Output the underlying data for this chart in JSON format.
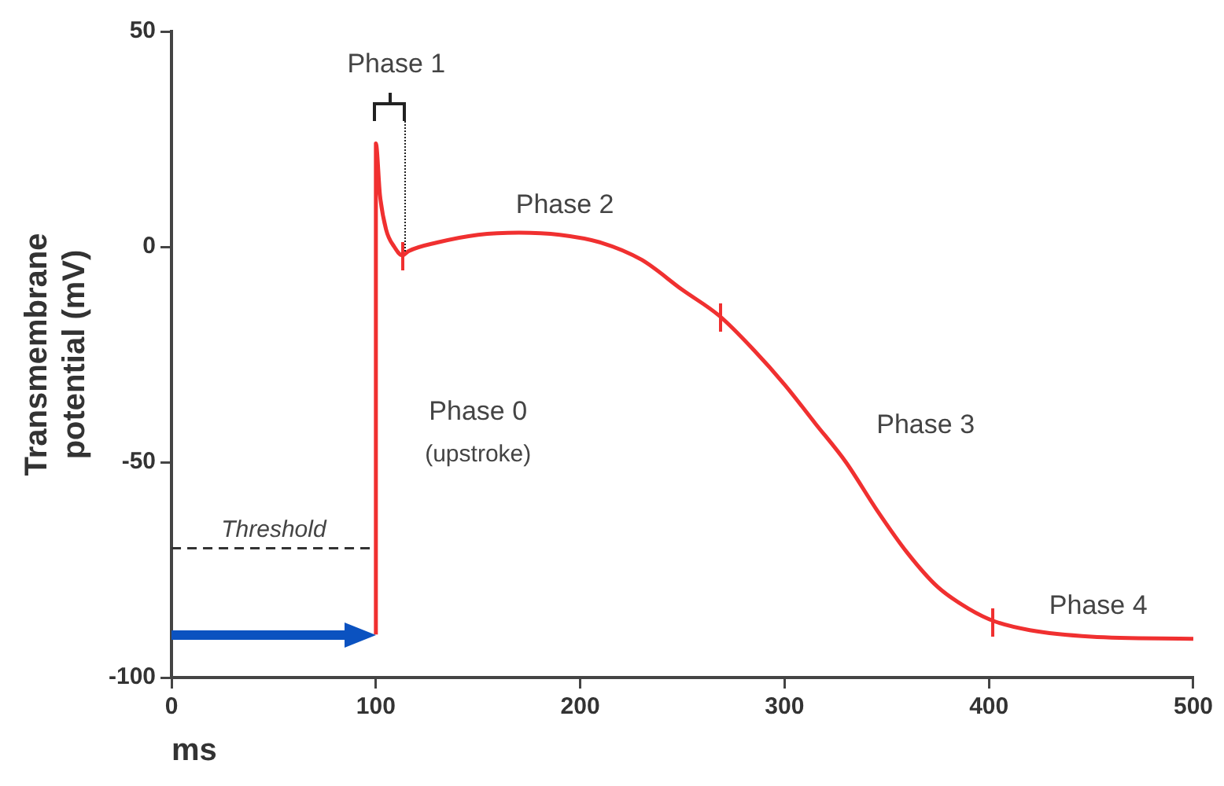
{
  "chart_data": {
    "type": "line",
    "xlabel": "ms",
    "ylabel": "Transmembrane potential (mV)",
    "xlim": [
      0,
      500
    ],
    "xticks": [
      0,
      100,
      200,
      300,
      400,
      500
    ],
    "ylim": [
      -100,
      50
    ],
    "yticks": [
      -100,
      -50,
      0,
      50
    ],
    "grid": false,
    "legend": false,
    "marker": "none",
    "line_style": "solid",
    "series": [
      {
        "color": "#f03030",
        "x": [
          100,
          100,
          102,
          105,
          109,
          113,
          116,
          130,
          150,
          170,
          190,
          210,
          230,
          250,
          268,
          285,
          300,
          315,
          330,
          345,
          360,
          375,
          390,
          403,
          420,
          450,
          500
        ],
        "values": [
          -90,
          24,
          12,
          4,
          0,
          -2,
          -1,
          1,
          2.8,
          3.3,
          2.8,
          1,
          -3,
          -10,
          -16,
          -24,
          -32,
          -41,
          -50,
          -61,
          -71,
          -79,
          -84,
          -87,
          -89,
          -90.5,
          -91
        ]
      }
    ],
    "ref_lines": [
      {
        "axis": "y",
        "value": -70,
        "label": "Threshold",
        "color": "#333333",
        "line_style": "dashed"
      }
    ],
    "annotations": [
      "Phase 1",
      "Phase 2",
      "Phase 0",
      "(upstroke)",
      "Phase 3",
      "Phase 4"
    ]
  }
}
